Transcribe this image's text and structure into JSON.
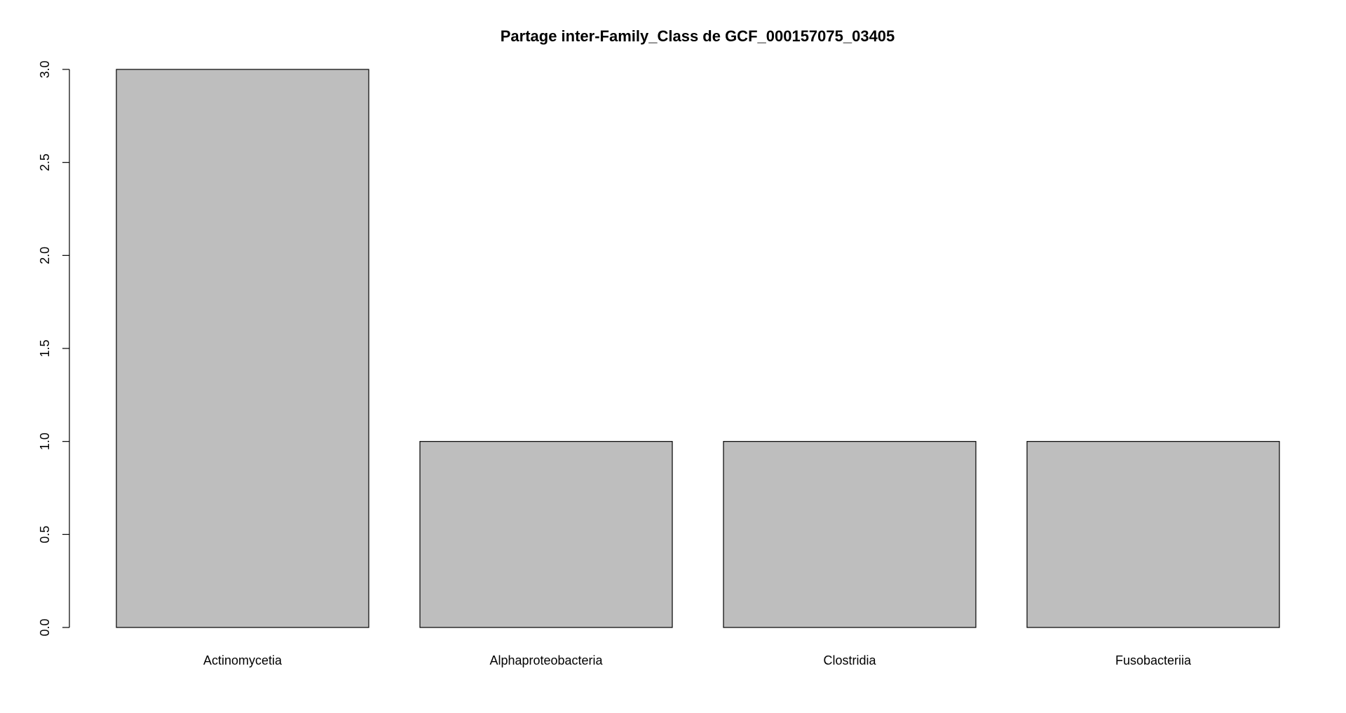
{
  "chart_data": {
    "type": "bar",
    "title": "Partage inter-Family_Class de GCF_000157075_03405",
    "categories": [
      "Actinomycetia",
      "Alphaproteobacteria",
      "Clostridia",
      "Fusobacteriia"
    ],
    "values": [
      3,
      1,
      1,
      1
    ],
    "xlabel": "",
    "ylabel": "",
    "ylim": [
      0,
      3
    ],
    "yticks": [
      "0.0",
      "0.5",
      "1.0",
      "1.5",
      "2.0",
      "2.5",
      "3.0"
    ],
    "bar_color": "#bebebe",
    "bar_border_color": "#000000",
    "grid": false,
    "legend": "none"
  }
}
